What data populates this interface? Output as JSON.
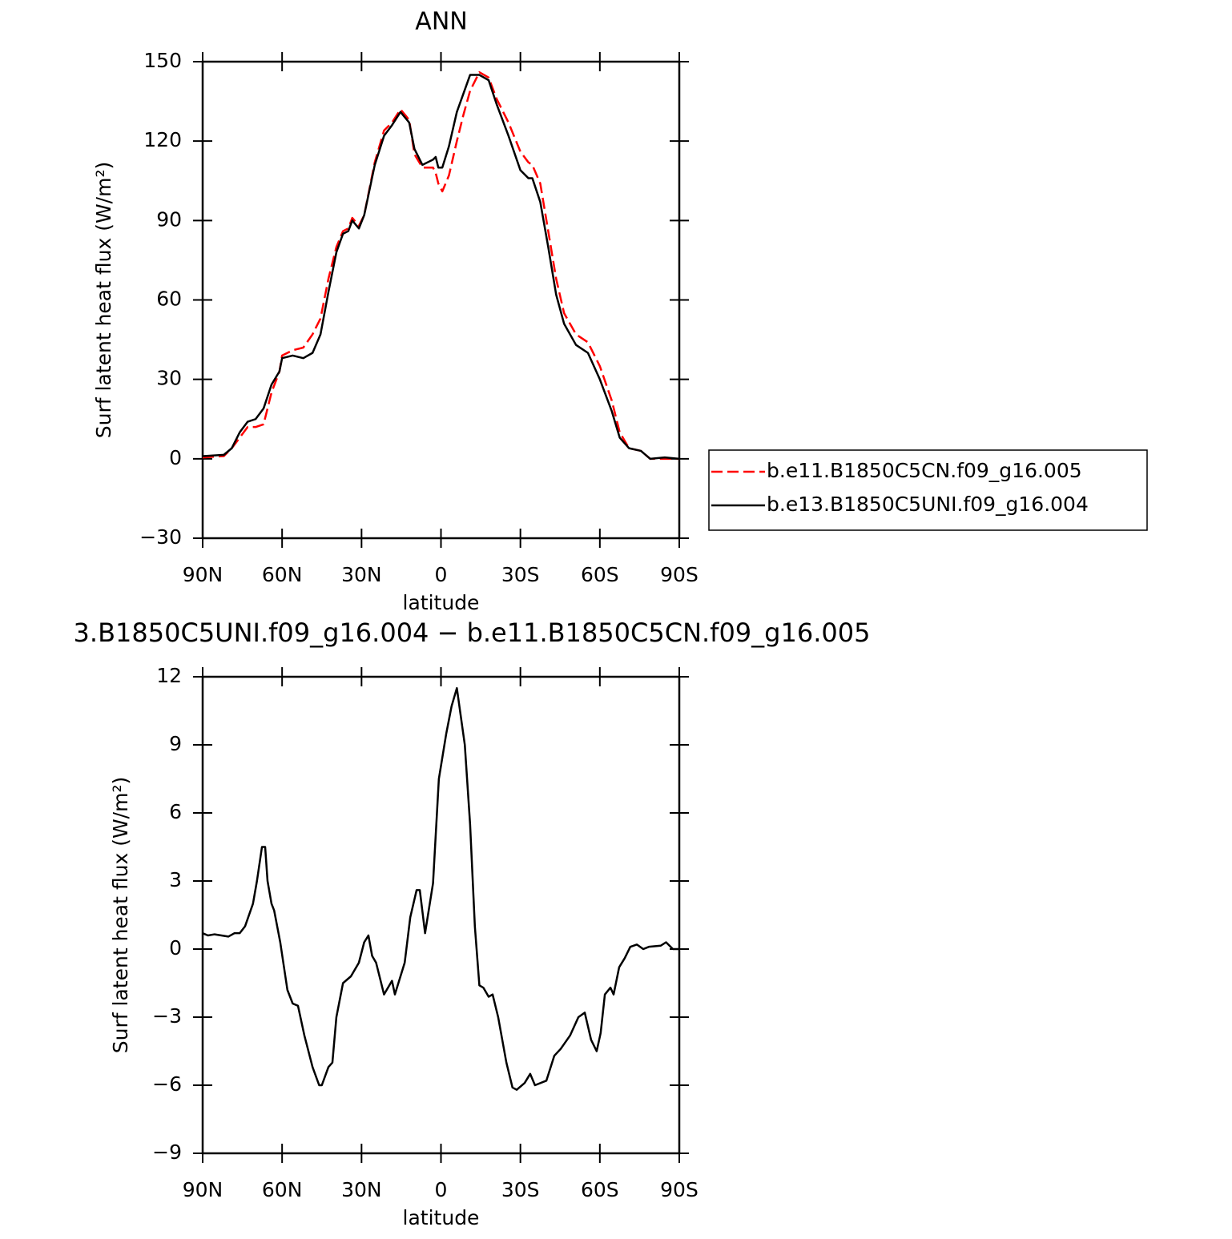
{
  "chart_data": [
    {
      "type": "line",
      "title": "ANN",
      "x_label": "latitude",
      "y_label": "Surf latent heat flux (W/m²)",
      "x": [
        90,
        82,
        79,
        76,
        73,
        70,
        67,
        64,
        61,
        60,
        56,
        52,
        48.5,
        45.5,
        42.5,
        39.5,
        37,
        35,
        33.5,
        31,
        29,
        25,
        21.5,
        18.5,
        15.3,
        12,
        10,
        7,
        3,
        2,
        1,
        -0.5,
        -3,
        -6,
        -8.5,
        -11,
        -14.5,
        -18,
        -21,
        -25.5,
        -30,
        -33,
        -34.5,
        -37.5,
        -40.5,
        -43.5,
        -46.5,
        -51,
        -55.5,
        -60,
        -64.5,
        -67.5,
        -71,
        -75.5,
        -79,
        -84.5,
        -90
      ],
      "series": [
        {
          "name": "b.e11.B1850C5CN.f09_g16.005",
          "color": "#ff0000",
          "dash": true,
          "values": [
            0.5,
            1,
            4,
            8,
            12,
            12,
            13,
            25,
            33,
            39,
            41,
            42,
            47,
            53,
            68,
            80,
            86,
            87,
            91,
            88,
            92,
            112,
            124,
            127,
            132,
            128,
            115,
            110,
            110,
            108,
            104,
            101,
            107,
            120,
            130,
            139,
            146,
            144,
            136,
            127,
            116,
            112,
            111,
            104,
            86,
            68,
            55,
            47,
            44,
            35,
            22,
            10,
            4,
            3,
            0,
            0,
            0
          ]
        },
        {
          "name": "b.e13.B1850C5UNI.f09_g16.004",
          "color": "#000000",
          "dash": false,
          "values": [
            1,
            1.5,
            4,
            10,
            14,
            15,
            19,
            28,
            33,
            38,
            39,
            38,
            40,
            47,
            63,
            78,
            85,
            86,
            90,
            87,
            92,
            111,
            122,
            126,
            131,
            127,
            117,
            111,
            113,
            114,
            110,
            110,
            118,
            131,
            138,
            145,
            145,
            143,
            134,
            122,
            109,
            106,
            106,
            97,
            80,
            62,
            51,
            43,
            40,
            30,
            18,
            8,
            4,
            3,
            0,
            0.5,
            0
          ]
        }
      ],
      "xlim": [
        90,
        -90
      ],
      "ylim": [
        -30,
        150
      ],
      "xticks": [
        {
          "value": 90,
          "label": "90N"
        },
        {
          "value": 60,
          "label": "60N"
        },
        {
          "value": 30,
          "label": "30N"
        },
        0,
        {
          "value": -30,
          "label": "30S"
        },
        {
          "value": -60,
          "label": "60S"
        },
        {
          "value": -90,
          "label": "90S"
        }
      ],
      "yticks": [
        {
          "value": -30,
          "label": "−30"
        },
        0,
        30,
        60,
        90,
        120,
        150
      ],
      "legend": "right"
    },
    {
      "type": "line",
      "title": "3.B1850C5UNI.f09_g16.004 − b.e11.B1850C5CN.f09_g16.005",
      "x_label": "latitude",
      "y_label": "Surf latent heat flux (W/m²)",
      "x": [
        90,
        88,
        85.5,
        80.3,
        78,
        76,
        74,
        71,
        69.5,
        67.6,
        66.4,
        65.5,
        64,
        63,
        60.7,
        58,
        56,
        54,
        51.6,
        48.5,
        46,
        45,
        42.5,
        41,
        39.5,
        37,
        34,
        31,
        29,
        27.4,
        26,
        24.5,
        21.5,
        18.5,
        17.4,
        13.7,
        11.6,
        9.2,
        8,
        6,
        3,
        0.8,
        -2,
        -4,
        -6,
        -9,
        -11,
        -12.8,
        -14.5,
        -16,
        -18,
        -19.5,
        -21.6,
        -24.7,
        -27,
        -28.6,
        -31.6,
        -33.7,
        -35.5,
        -39.8,
        -42.8,
        -45.2,
        -48.8,
        -51.9,
        -54.3,
        -56.7,
        -58.8,
        -60.3,
        -61.9,
        -64,
        -65.2,
        -67.3,
        -69.4,
        -71.5,
        -74,
        -76.4,
        -78.5,
        -83,
        -85,
        -87.6,
        -90
      ],
      "color": "#000000",
      "values": [
        0.7,
        0.6,
        0.65,
        0.55,
        0.7,
        0.7,
        1.0,
        2.0,
        3.0,
        4.5,
        4.5,
        3.0,
        2.0,
        1.7,
        0.3,
        -1.8,
        -2.4,
        -2.5,
        -3.8,
        -5.2,
        -6.0,
        -6.0,
        -5.2,
        -5.0,
        -3.0,
        -1.5,
        -1.2,
        -0.6,
        0.3,
        0.6,
        -0.3,
        -0.6,
        -2.0,
        -1.4,
        -2.0,
        -0.6,
        1.4,
        2.6,
        2.6,
        0.7,
        2.9,
        7.5,
        9.5,
        10.7,
        11.5,
        9.0,
        5.5,
        1.0,
        -1.6,
        -1.7,
        -2.1,
        -2.0,
        -3.0,
        -5.0,
        -6.1,
        -6.2,
        -5.9,
        -5.5,
        -6.0,
        -5.8,
        -4.7,
        -4.4,
        -3.8,
        -3.0,
        -2.8,
        -4.0,
        -4.5,
        -3.7,
        -2.0,
        -1.7,
        -2.0,
        -0.8,
        -0.4,
        0.1,
        0.2,
        0.0,
        0.1,
        0.15,
        0.3,
        0.0,
        0.0
      ],
      "xlim": [
        90,
        -90
      ],
      "ylim": [
        -9,
        12
      ],
      "xticks": [
        {
          "value": 90,
          "label": "90N"
        },
        {
          "value": 60,
          "label": "60N"
        },
        {
          "value": 30,
          "label": "30N"
        },
        0,
        {
          "value": -30,
          "label": "30S"
        },
        {
          "value": -60,
          "label": "60S"
        },
        {
          "value": -90,
          "label": "90S"
        }
      ],
      "yticks": [
        {
          "value": -9,
          "label": "−9"
        },
        {
          "value": -6,
          "label": "−6"
        },
        {
          "value": -3,
          "label": "−3"
        },
        0,
        3,
        6,
        9,
        12
      ]
    }
  ]
}
